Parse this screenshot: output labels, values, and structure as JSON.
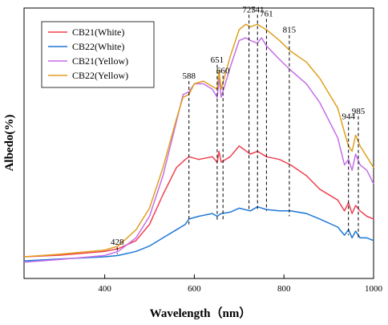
{
  "chart_data": {
    "type": "line",
    "xlabel": "Wavelength（nm）",
    "ylabel": "Albedo(%)",
    "xlim": [
      220,
      1000
    ],
    "ylim": [
      0,
      100
    ],
    "x_ticks": [
      400,
      600,
      800,
      1000
    ],
    "legend_position": "top-left",
    "grid": false,
    "series": [
      {
        "name": "CB21(White)",
        "color": "#f0414f",
        "points": [
          [
            220,
            8
          ],
          [
            300,
            8.6
          ],
          [
            400,
            10
          ],
          [
            430,
            11
          ],
          [
            470,
            14
          ],
          [
            500,
            20
          ],
          [
            530,
            31
          ],
          [
            560,
            41
          ],
          [
            580,
            44
          ],
          [
            588,
            45
          ],
          [
            610,
            44
          ],
          [
            640,
            45
          ],
          [
            651,
            43
          ],
          [
            655,
            47
          ],
          [
            660,
            43
          ],
          [
            680,
            45
          ],
          [
            700,
            49
          ],
          [
            725,
            46
          ],
          [
            741,
            47
          ],
          [
            761,
            45
          ],
          [
            790,
            44
          ],
          [
            815,
            42
          ],
          [
            850,
            38
          ],
          [
            880,
            33
          ],
          [
            920,
            29
          ],
          [
            935,
            25
          ],
          [
            944,
            28
          ],
          [
            952,
            24
          ],
          [
            960,
            27
          ],
          [
            970,
            25
          ],
          [
            985,
            23
          ],
          [
            1000,
            22
          ]
        ]
      },
      {
        "name": "CB22(White)",
        "color": "#1f77d6",
        "points": [
          [
            220,
            6.5
          ],
          [
            300,
            7.2
          ],
          [
            400,
            8
          ],
          [
            430,
            8.5
          ],
          [
            470,
            10
          ],
          [
            500,
            12
          ],
          [
            530,
            15
          ],
          [
            560,
            18
          ],
          [
            580,
            20
          ],
          [
            588,
            22
          ],
          [
            610,
            23
          ],
          [
            640,
            24
          ],
          [
            651,
            23
          ],
          [
            660,
            24
          ],
          [
            680,
            24.5
          ],
          [
            700,
            26
          ],
          [
            725,
            25
          ],
          [
            741,
            26.5
          ],
          [
            761,
            25.5
          ],
          [
            790,
            25
          ],
          [
            815,
            25
          ],
          [
            850,
            24
          ],
          [
            880,
            22
          ],
          [
            920,
            19
          ],
          [
            935,
            16
          ],
          [
            944,
            18
          ],
          [
            952,
            15
          ],
          [
            960,
            17.5
          ],
          [
            970,
            15
          ],
          [
            985,
            15
          ],
          [
            1000,
            14
          ]
        ]
      },
      {
        "name": "CB21(Yellow)",
        "color": "#c56ee8",
        "points": [
          [
            220,
            6
          ],
          [
            300,
            7
          ],
          [
            400,
            8.5
          ],
          [
            430,
            10
          ],
          [
            470,
            15
          ],
          [
            500,
            23
          ],
          [
            530,
            38
          ],
          [
            560,
            58
          ],
          [
            575,
            68
          ],
          [
            588,
            69
          ],
          [
            600,
            72
          ],
          [
            620,
            72
          ],
          [
            640,
            70
          ],
          [
            651,
            67
          ],
          [
            655,
            74
          ],
          [
            660,
            67
          ],
          [
            680,
            78
          ],
          [
            700,
            88
          ],
          [
            715,
            89
          ],
          [
            725,
            88
          ],
          [
            741,
            87
          ],
          [
            750,
            89
          ],
          [
            761,
            86
          ],
          [
            790,
            81
          ],
          [
            815,
            77
          ],
          [
            850,
            72
          ],
          [
            880,
            65
          ],
          [
            920,
            52
          ],
          [
            935,
            42
          ],
          [
            944,
            44
          ],
          [
            952,
            40
          ],
          [
            960,
            46
          ],
          [
            970,
            42
          ],
          [
            985,
            40
          ],
          [
            1000,
            35
          ]
        ]
      },
      {
        "name": "CB22(Yellow)",
        "color": "#e0a020",
        "points": [
          [
            220,
            8
          ],
          [
            300,
            9
          ],
          [
            400,
            10.5
          ],
          [
            430,
            12
          ],
          [
            470,
            18
          ],
          [
            500,
            26
          ],
          [
            530,
            41
          ],
          [
            560,
            59
          ],
          [
            575,
            67
          ],
          [
            588,
            68
          ],
          [
            600,
            72
          ],
          [
            620,
            73
          ],
          [
            640,
            71
          ],
          [
            651,
            70
          ],
          [
            655,
            77
          ],
          [
            660,
            70
          ],
          [
            680,
            82
          ],
          [
            700,
            92
          ],
          [
            715,
            94
          ],
          [
            725,
            93
          ],
          [
            741,
            94
          ],
          [
            750,
            93
          ],
          [
            761,
            92
          ],
          [
            790,
            88
          ],
          [
            815,
            84
          ],
          [
            850,
            80
          ],
          [
            880,
            74
          ],
          [
            920,
            63
          ],
          [
            935,
            54
          ],
          [
            944,
            49
          ],
          [
            952,
            47
          ],
          [
            960,
            53
          ],
          [
            970,
            49
          ],
          [
            985,
            45
          ],
          [
            1000,
            41
          ]
        ]
      }
    ],
    "annotations": [
      {
        "label": "428",
        "x": 428,
        "y": 11.5,
        "line_bottom": 9
      },
      {
        "label": "588",
        "x": 588,
        "y": 73,
        "line_bottom": 20
      },
      {
        "label": "651",
        "x": 651,
        "y": 79,
        "line_bottom": 21
      },
      {
        "label": "660",
        "x": 664,
        "y": 75,
        "line_bottom": 21
      },
      {
        "label": "725",
        "x": 722,
        "y": 97.5,
        "line_bottom": 25
      },
      {
        "label": "741",
        "x": 741,
        "y": 97.5,
        "line_bottom": 25
      },
      {
        "label": "761",
        "x": 761,
        "y": 96,
        "line_bottom": 25
      },
      {
        "label": "815",
        "x": 812,
        "y": 90,
        "line_bottom": 23
      },
      {
        "label": "944",
        "x": 944,
        "y": 58,
        "line_bottom": 16
      },
      {
        "label": "985",
        "x": 966,
        "y": 60,
        "line_bottom": 15
      }
    ]
  }
}
